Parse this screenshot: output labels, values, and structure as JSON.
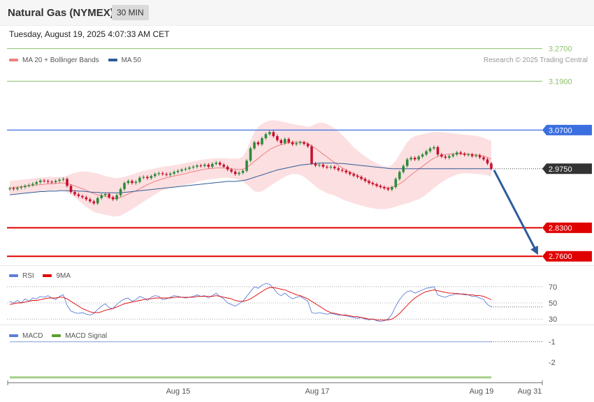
{
  "header": {
    "title": "Natural Gas (NYMEX)",
    "interval": "30 MIN",
    "datetime": "Tuesday, August 19, 2025 4:07:33 AM CET"
  },
  "legend_main": [
    {
      "label": "MA 20 + Bollinger Bands",
      "color": "#f08080"
    },
    {
      "label": "MA 50",
      "color": "#2e5c9a"
    }
  ],
  "copyright": "Research © 2025 Trading Central",
  "legend_rsi": [
    {
      "label": "RSI",
      "color": "#5b7fd8"
    },
    {
      "label": "9MA",
      "color": "#e00000"
    }
  ],
  "legend_macd": [
    {
      "label": "MACD",
      "color": "#5b7fd8"
    },
    {
      "label": "MACD Signal",
      "color": "#5aa02c"
    }
  ],
  "colors": {
    "up_candle": "#2e8b3a",
    "down_candle": "#c8102e",
    "resistance": "#8dc06b",
    "pivot": "#3b6fe0",
    "support": "#e00000",
    "current": "#333333",
    "arrow": "#2e5c9a",
    "band_fill": "#fbd9dc"
  },
  "chart_data": [
    {
      "type": "candlestick",
      "title": "",
      "ylim": [
        2.745,
        3.29
      ],
      "price_levels": [
        {
          "value": 3.27,
          "label": "3.2700",
          "kind": "resistance"
        },
        {
          "value": 3.19,
          "label": "3.1900",
          "kind": "resistance"
        },
        {
          "value": 3.07,
          "label": "3.0700",
          "kind": "pivot"
        },
        {
          "value": 2.975,
          "label": "2.9750",
          "kind": "current"
        },
        {
          "value": 2.83,
          "label": "2.8300",
          "kind": "support"
        },
        {
          "value": 2.76,
          "label": "2.7600",
          "kind": "support"
        }
      ],
      "x_ticks": [
        "Aug 15",
        "Aug 17",
        "Aug 19",
        "Aug 31"
      ],
      "close": [
        2.927,
        2.925,
        2.928,
        2.93,
        2.933,
        2.935,
        2.938,
        2.942,
        2.946,
        2.945,
        2.943,
        2.942,
        2.945,
        2.948,
        2.95,
        2.933,
        2.918,
        2.912,
        2.908,
        2.905,
        2.9,
        2.895,
        2.89,
        2.903,
        2.91,
        2.913,
        2.905,
        2.9,
        2.91,
        2.925,
        2.94,
        2.945,
        2.94,
        2.943,
        2.953,
        2.955,
        2.952,
        2.957,
        2.962,
        2.964,
        2.962,
        2.96,
        2.963,
        2.967,
        2.97,
        2.973,
        2.975,
        2.978,
        2.98,
        2.983,
        2.982,
        2.985,
        2.98,
        2.987,
        2.99,
        2.985,
        2.98,
        2.973,
        2.968,
        2.962,
        2.965,
        2.97,
        2.995,
        3.025,
        3.04,
        3.035,
        3.05,
        3.06,
        3.065,
        3.055,
        3.045,
        3.038,
        3.048,
        3.04,
        3.035,
        3.038,
        3.04,
        3.036,
        3.03,
        2.988,
        2.983,
        2.985,
        2.98,
        2.978,
        2.98,
        2.976,
        2.972,
        2.97,
        2.966,
        2.962,
        2.958,
        2.955,
        2.95,
        2.945,
        2.94,
        2.937,
        2.933,
        2.93,
        2.927,
        2.924,
        2.93,
        2.95,
        2.967,
        2.982,
        2.998,
        3.002,
        2.998,
        3.005,
        3.01,
        3.018,
        3.025,
        3.028,
        3.01,
        3.005,
        3.002,
        3.006,
        3.01,
        3.015,
        3.012,
        3.009,
        3.01,
        3.006,
        3.008,
        3.003,
        2.998,
        2.988,
        2.975
      ],
      "ma20": [
        2.928,
        2.929,
        2.93,
        2.931,
        2.932,
        2.933,
        2.934,
        2.935,
        2.936,
        2.937,
        2.938,
        2.938,
        2.939,
        2.94,
        2.94,
        2.939,
        2.936,
        2.933,
        2.929,
        2.926,
        2.922,
        2.918,
        2.914,
        2.911,
        2.909,
        2.907,
        2.904,
        2.902,
        2.902,
        2.905,
        2.909,
        2.913,
        2.917,
        2.921,
        2.926,
        2.931,
        2.936,
        2.94,
        2.944,
        2.947,
        2.95,
        2.953,
        2.955,
        2.957,
        2.959,
        2.961,
        2.963,
        2.966,
        2.968,
        2.97,
        2.972,
        2.974,
        2.975,
        2.976,
        2.977,
        2.977,
        2.977,
        2.976,
        2.975,
        2.974,
        2.973,
        2.974,
        2.978,
        2.985,
        2.993,
        3.0,
        3.008,
        3.015,
        3.022,
        3.027,
        3.031,
        3.034,
        3.037,
        3.039,
        3.04,
        3.041,
        3.041,
        3.04,
        3.037,
        3.031,
        3.025,
        3.018,
        3.011,
        3.004,
        2.997,
        2.99,
        2.983,
        2.977,
        2.972,
        2.967,
        2.963,
        2.958,
        2.953,
        2.948,
        2.943,
        2.939,
        2.934,
        2.931,
        2.929,
        2.928,
        2.929,
        2.933,
        2.938,
        2.944,
        2.952,
        2.96,
        2.967,
        2.974,
        2.981,
        2.988,
        2.995,
        3.001,
        3.005,
        3.008,
        3.01,
        3.011,
        3.012,
        3.012,
        3.012,
        3.011,
        3.011,
        3.01,
        3.009,
        3.008,
        3.006,
        3.003,
        2.999
      ],
      "bb_upper": [
        2.945,
        2.946,
        2.947,
        2.948,
        2.949,
        2.95,
        2.951,
        2.952,
        2.953,
        2.954,
        2.955,
        2.955,
        2.955,
        2.955,
        2.955,
        2.958,
        2.962,
        2.965,
        2.967,
        2.968,
        2.968,
        2.967,
        2.965,
        2.963,
        2.96,
        2.957,
        2.955,
        2.953,
        2.952,
        2.953,
        2.955,
        2.958,
        2.961,
        2.964,
        2.967,
        2.97,
        2.972,
        2.974,
        2.976,
        2.978,
        2.98,
        2.981,
        2.982,
        2.984,
        2.985,
        2.987,
        2.989,
        2.991,
        2.993,
        2.995,
        2.997,
        2.998,
        2.999,
        3.0,
        3.001,
        3.001,
        3.001,
        3.0,
        3.0,
        3.0,
        3.0,
        3.005,
        3.02,
        3.045,
        3.065,
        3.078,
        3.085,
        3.09,
        3.093,
        3.094,
        3.093,
        3.091,
        3.089,
        3.087,
        3.085,
        3.083,
        3.082,
        3.08,
        3.078,
        3.08,
        3.085,
        3.088,
        3.088,
        3.085,
        3.08,
        3.074,
        3.067,
        3.058,
        3.048,
        3.038,
        3.028,
        3.02,
        3.012,
        3.005,
        2.999,
        2.993,
        2.988,
        2.984,
        2.981,
        2.98,
        2.984,
        2.995,
        3.01,
        3.025,
        3.04,
        3.05,
        3.055,
        3.058,
        3.06,
        3.062,
        3.064,
        3.065,
        3.065,
        3.065,
        3.064,
        3.063,
        3.062,
        3.061,
        3.06,
        3.059,
        3.058,
        3.057,
        3.056,
        3.054,
        3.051,
        3.047,
        3.043
      ],
      "bb_lower": [
        2.911,
        2.912,
        2.913,
        2.914,
        2.915,
        2.916,
        2.917,
        2.918,
        2.919,
        2.92,
        2.921,
        2.921,
        2.922,
        2.922,
        2.922,
        2.918,
        2.912,
        2.905,
        2.897,
        2.889,
        2.882,
        2.875,
        2.869,
        2.866,
        2.864,
        2.862,
        2.86,
        2.858,
        2.858,
        2.86,
        2.865,
        2.87,
        2.876,
        2.882,
        2.888,
        2.894,
        2.9,
        2.906,
        2.912,
        2.918,
        2.922,
        2.925,
        2.928,
        2.93,
        2.932,
        2.934,
        2.936,
        2.938,
        2.94,
        2.943,
        2.945,
        2.947,
        2.949,
        2.95,
        2.951,
        2.952,
        2.953,
        2.953,
        2.952,
        2.95,
        2.948,
        2.944,
        2.937,
        2.928,
        2.92,
        2.917,
        2.92,
        2.925,
        2.932,
        2.938,
        2.944,
        2.95,
        2.955,
        2.96,
        2.962,
        2.962,
        2.96,
        2.955,
        2.948,
        2.94,
        2.932,
        2.925,
        2.92,
        2.915,
        2.912,
        2.909,
        2.905,
        2.9,
        2.896,
        2.893,
        2.89,
        2.887,
        2.885,
        2.882,
        2.88,
        2.878,
        2.876,
        2.876,
        2.876,
        2.877,
        2.879,
        2.882,
        2.885,
        2.888,
        2.89,
        2.893,
        2.897,
        2.9,
        2.905,
        2.912,
        2.92,
        2.928,
        2.935,
        2.942,
        2.948,
        2.953,
        2.957,
        2.961,
        2.963,
        2.964,
        2.964,
        2.963,
        2.962,
        2.962,
        2.961,
        2.959,
        2.955
      ],
      "ma50": [
        2.911,
        2.912,
        2.913,
        2.914,
        2.915,
        2.916,
        2.917,
        2.918,
        2.919,
        2.919,
        2.92,
        2.92,
        2.92,
        2.921,
        2.921,
        2.921,
        2.921,
        2.921,
        2.92,
        2.92,
        2.919,
        2.918,
        2.917,
        2.917,
        2.916,
        2.916,
        2.916,
        2.916,
        2.916,
        2.916,
        2.917,
        2.918,
        2.919,
        2.92,
        2.921,
        2.922,
        2.923,
        2.924,
        2.925,
        2.926,
        2.927,
        2.928,
        2.929,
        2.93,
        2.931,
        2.932,
        2.933,
        2.934,
        2.935,
        2.936,
        2.937,
        2.938,
        2.939,
        2.94,
        2.941,
        2.942,
        2.943,
        2.944,
        2.944,
        2.944,
        2.945,
        2.946,
        2.948,
        2.951,
        2.954,
        2.957,
        2.96,
        2.963,
        2.966,
        2.969,
        2.972,
        2.974,
        2.976,
        2.978,
        2.98,
        2.982,
        2.984,
        2.985,
        2.986,
        2.987,
        2.988,
        2.989,
        2.989,
        2.989,
        2.989,
        2.989,
        2.988,
        2.988,
        2.987,
        2.986,
        2.985,
        2.984,
        2.983,
        2.982,
        2.981,
        2.98,
        2.979,
        2.978,
        2.977,
        2.976,
        2.975,
        2.975,
        2.975,
        2.975,
        2.975,
        2.975,
        2.975,
        2.975,
        2.975,
        2.975,
        2.975,
        2.975,
        2.975,
        2.975,
        2.975,
        2.975,
        2.975,
        2.975,
        2.975,
        2.975,
        2.975,
        2.975,
        2.975,
        2.975,
        2.975,
        2.975,
        2.975
      ],
      "forecast": {
        "from": 2.975,
        "to": 2.76
      }
    },
    {
      "type": "line",
      "title": "RSI",
      "ylim": [
        25,
        75
      ],
      "levels": [
        70,
        50,
        30
      ],
      "level_labels": [
        "70",
        "50",
        "30"
      ],
      "series": [
        {
          "name": "RSI",
          "values": [
            52,
            50,
            53,
            50,
            55,
            52,
            56,
            55,
            58,
            57,
            59,
            56,
            54,
            58,
            60,
            47,
            40,
            38,
            37,
            38,
            36,
            35,
            37,
            42,
            46,
            49,
            44,
            43,
            48,
            52,
            55,
            56,
            52,
            54,
            58,
            56,
            53,
            57,
            59,
            58,
            54,
            55,
            57,
            59,
            58,
            57,
            56,
            57,
            58,
            60,
            58,
            59,
            56,
            59,
            62,
            58,
            55,
            50,
            48,
            46,
            49,
            52,
            58,
            64,
            70,
            68,
            72,
            74,
            73,
            68,
            62,
            59,
            62,
            58,
            55,
            57,
            58,
            55,
            52,
            38,
            37,
            38,
            37,
            36,
            37,
            36,
            35,
            35,
            34,
            33,
            32,
            31,
            32,
            30,
            29,
            30,
            28,
            27,
            28,
            30,
            36,
            46,
            54,
            60,
            64,
            65,
            62,
            64,
            66,
            68,
            69,
            70,
            60,
            58,
            57,
            59,
            60,
            62,
            61,
            60,
            60,
            58,
            58,
            56,
            54,
            48,
            45
          ]
        },
        {
          "name": "9MA",
          "values": [
            48,
            49,
            50,
            50,
            51,
            52,
            53,
            53,
            54,
            55,
            56,
            56,
            56,
            57,
            57,
            55,
            52,
            49,
            46,
            43,
            41,
            39,
            38,
            38,
            39,
            41,
            42,
            43,
            45,
            47,
            49,
            50,
            51,
            52,
            53,
            54,
            55,
            55,
            56,
            56,
            56,
            56,
            56,
            57,
            57,
            57,
            57,
            57,
            57,
            58,
            58,
            58,
            58,
            58,
            59,
            58,
            57,
            56,
            55,
            53,
            52,
            52,
            53,
            55,
            58,
            61,
            64,
            67,
            69,
            69,
            68,
            67,
            66,
            64,
            62,
            60,
            59,
            57,
            55,
            52,
            49,
            46,
            43,
            40,
            38,
            37,
            36,
            35,
            35,
            34,
            33,
            33,
            32,
            31,
            30,
            30,
            29,
            29,
            29,
            29,
            30,
            33,
            37,
            42,
            47,
            52,
            56,
            59,
            62,
            64,
            65,
            66,
            65,
            64,
            63,
            62,
            62,
            61,
            61,
            61,
            60,
            60,
            59,
            59,
            58,
            56,
            54
          ]
        }
      ]
    },
    {
      "type": "line",
      "title": "MACD",
      "ylim": [
        -3.0,
        -0.6
      ],
      "levels": [
        -1,
        -2
      ],
      "level_labels": [
        "-1",
        "-2"
      ],
      "series": [
        {
          "name": "MACD",
          "values": [
            -1.0,
            -1.0
          ]
        },
        {
          "name": "MACD Signal",
          "values": [
            -2.75,
            -2.75
          ]
        }
      ]
    }
  ]
}
